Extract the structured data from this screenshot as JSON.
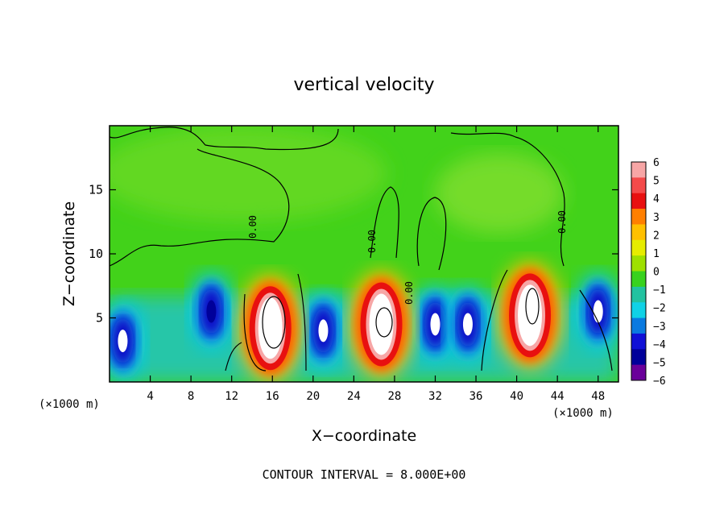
{
  "chart_data": {
    "type": "heatmap",
    "title": "vertical velocity",
    "xlabel": "X−coordinate",
    "ylabel": "Z−coordinate",
    "x_unit_left": "(×1000 m)",
    "x_unit_right": "(×1000 m)",
    "xlim": [
      0,
      50
    ],
    "ylim": [
      0,
      20
    ],
    "x_ticks": [
      "4",
      "8",
      "12",
      "16",
      "20",
      "24",
      "28",
      "32",
      "36",
      "40",
      "44",
      "48"
    ],
    "y_ticks": [
      "5",
      "10",
      "15"
    ],
    "colorbar": {
      "ticks": [
        "6",
        "5",
        "4",
        "3",
        "2",
        "1",
        "0",
        "−1",
        "−2",
        "−3",
        "−4",
        "−5",
        "−6"
      ],
      "colors": [
        "#f7a6a6",
        "#f44a4a",
        "#e81010",
        "#ff7f00",
        "#ffc000",
        "#e6ec00",
        "#9ee000",
        "#38d21e",
        "#22c2a0",
        "#10d2e6",
        "#0a7ae0",
        "#1010d6",
        "#00009a",
        "#6a009a"
      ]
    },
    "contour_labels": [
      "0.00",
      "0.00",
      "0.00",
      "0.00"
    ],
    "footer": "CONTOUR INTERVAL = 8.000E+00",
    "updrafts": [
      {
        "x": 15.8,
        "z": 4.2,
        "peak": 6
      },
      {
        "x": 26.7,
        "z": 4.5,
        "peak": 5
      },
      {
        "x": 41.3,
        "z": 5.2,
        "peak": 6
      }
    ],
    "downdrafts": [
      {
        "x": 1.3,
        "z": 3.2,
        "peak": -6
      },
      {
        "x": 10.0,
        "z": 5.5,
        "peak": -5
      },
      {
        "x": 21.0,
        "z": 4.0,
        "peak": -6
      },
      {
        "x": 32.0,
        "z": 4.5,
        "peak": -6
      },
      {
        "x": 35.2,
        "z": 4.5,
        "peak": -6
      },
      {
        "x": 48.0,
        "z": 5.5,
        "peak": -6
      }
    ]
  }
}
